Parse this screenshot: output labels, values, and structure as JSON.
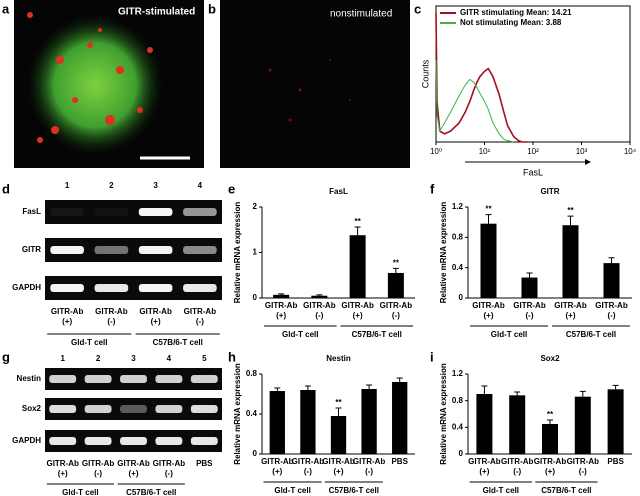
{
  "panels": [
    {
      "label": "a",
      "caption": "GITR-stimulated"
    },
    {
      "label": "b",
      "caption": "nonstimulated"
    }
  ],
  "gels": [
    {
      "label": "d",
      "lanes": [
        "1",
        "2",
        "3",
        "4"
      ],
      "rows": [
        "FasL",
        "GITR",
        "GAPDH"
      ],
      "conditions": [
        "GITR-Ab (+)",
        "GITR-Ab (-)",
        "GITR-Ab (+)",
        "GITR-Ab (-)"
      ],
      "groups": [
        "Gld-T cell",
        "C57B/6-T cell"
      ]
    },
    {
      "label": "g",
      "lanes": [
        "1",
        "2",
        "3",
        "4",
        "5"
      ],
      "rows": [
        "Nestin",
        "Sox2",
        "GAPDH"
      ],
      "conditions": [
        "GITR-Ab (+)",
        "GITR-Ab (-)",
        "GITR-Ab (+)",
        "GITR-Ab (-)",
        "PBS"
      ],
      "groups": [
        "Gld-T cell",
        "C57B/6-T cell"
      ]
    }
  ],
  "chart_data": [
    {
      "label": "c",
      "type": "line",
      "ylabel": "Counts",
      "xlabel": "FasL",
      "xscale": "log",
      "xlim": [
        1,
        10000
      ],
      "xticks": [
        {
          "value": 1,
          "label": "10⁰"
        },
        {
          "value": 10,
          "label": "10¹"
        },
        {
          "value": 100,
          "label": "10²"
        },
        {
          "value": 1000,
          "label": "10³"
        },
        {
          "value": 10000,
          "label": "10⁴"
        }
      ],
      "ylim": [
        0,
        100
      ],
      "legend": "top",
      "series": [
        {
          "name": "GITR stimulating Mean: 14.21",
          "color": "#a01020",
          "x": [
            1,
            1.05,
            1.2,
            1.5,
            2,
            3,
            4,
            5,
            6,
            7,
            8,
            10,
            12,
            15,
            20,
            25,
            30,
            40,
            50,
            60,
            80
          ],
          "values": [
            95,
            30,
            8,
            6,
            8,
            14,
            22,
            30,
            38,
            44,
            48,
            52,
            54,
            48,
            35,
            22,
            12,
            4,
            1,
            0,
            0
          ]
        },
        {
          "name": "Not stimulating Mean: 3.88",
          "color": "#3cb44b",
          "x": [
            1,
            1.05,
            1.2,
            1.5,
            2,
            3,
            4,
            5,
            6,
            7,
            8,
            10,
            12,
            15,
            20,
            25,
            30,
            40
          ],
          "values": [
            60,
            20,
            8,
            14,
            22,
            34,
            42,
            46,
            44,
            40,
            36,
            30,
            24,
            14,
            6,
            2,
            1,
            0
          ]
        }
      ]
    },
    {
      "label": "e",
      "type": "bar",
      "title": "FasL",
      "ylabel": "Relative mRNA expression",
      "color": "#000000",
      "categories": [
        "GITR-Ab (+)",
        "GITR-Ab (-)",
        "GITR-Ab (+)",
        "GITR-Ab (-)"
      ],
      "values": [
        0.07,
        0.05,
        1.38,
        0.55
      ],
      "errors": [
        0.02,
        0.02,
        0.18,
        0.1
      ],
      "significance": [
        null,
        null,
        "**",
        "**"
      ],
      "groups": [
        "Gld-T cell",
        "C57B/6-T cell"
      ],
      "ylim": [
        0,
        2
      ],
      "yticks": [
        0,
        1,
        2
      ]
    },
    {
      "label": "f",
      "type": "bar",
      "title": "GITR",
      "ylabel": "Relative mRNA expression",
      "color": "#000000",
      "categories": [
        "GITR-Ab (+)",
        "GITR-Ab (-)",
        "GITR-Ab (+)",
        "GITR-Ab (-)"
      ],
      "values": [
        0.98,
        0.27,
        0.96,
        0.46
      ],
      "errors": [
        0.12,
        0.06,
        0.12,
        0.07
      ],
      "significance": [
        "**",
        null,
        "**",
        null
      ],
      "groups": [
        "Gld-T cell",
        "C57B/6-T cell"
      ],
      "ylim": [
        0,
        1.2
      ],
      "yticks": [
        0,
        0.4,
        0.8,
        1.2
      ]
    },
    {
      "label": "h",
      "type": "bar",
      "title": "Nestin",
      "ylabel": "Relative mRNA expression",
      "color": "#000000",
      "categories": [
        "GITR-Ab (+)",
        "GITR-Ab (-)",
        "GITR-Ab (+)",
        "GITR-Ab (-)",
        "PBS"
      ],
      "values": [
        0.63,
        0.64,
        0.38,
        0.65,
        0.72
      ],
      "errors": [
        0.03,
        0.04,
        0.08,
        0.04,
        0.04
      ],
      "significance": [
        null,
        null,
        "**",
        null,
        null
      ],
      "groups": [
        "Gld-T cell",
        "C57B/6-T cell"
      ],
      "ylim": [
        0,
        0.8
      ],
      "yticks": [
        0,
        0.4,
        0.8
      ]
    },
    {
      "label": "i",
      "type": "bar",
      "title": "Sox2",
      "ylabel": "Relative mRNA expression",
      "color": "#000000",
      "categories": [
        "GITR-Ab (+)",
        "GITR-Ab (-)",
        "GITR-Ab (+)",
        "GITR-Ab (-)",
        "PBS"
      ],
      "values": [
        0.9,
        0.88,
        0.45,
        0.86,
        0.97
      ],
      "errors": [
        0.12,
        0.05,
        0.06,
        0.08,
        0.06
      ],
      "significance": [
        null,
        null,
        "**",
        null,
        null
      ],
      "groups": [
        "Gld-T cell",
        "C57B/6-T cell"
      ],
      "ylim": [
        0,
        1.2
      ],
      "yticks": [
        0,
        0.4,
        0.8,
        1.2
      ]
    }
  ]
}
